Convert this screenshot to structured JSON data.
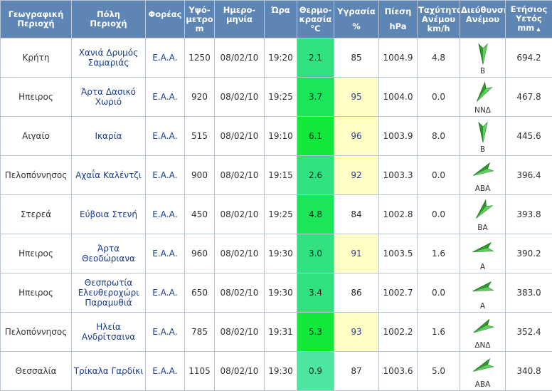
{
  "headers": {
    "region": [
      "Γεωγραφική",
      "Περιοχή"
    ],
    "station": [
      "Πόλη",
      "Περιοχή"
    ],
    "agency": "Φορέας",
    "altitude": [
      "Υψό-",
      "μετρο",
      "m"
    ],
    "date": [
      "Ημερο-",
      "μηνία"
    ],
    "time": "Ώρα",
    "temperature": [
      "Θερμο-",
      "κρασία",
      "°C"
    ],
    "humidity": [
      "Υγρασία",
      "%"
    ],
    "pressure": [
      "Πίεση",
      "hPa"
    ],
    "wind_speed": [
      "Ταχύτητα",
      "Ανέμου",
      "km/h"
    ],
    "wind_direction": [
      "Διεύθυνση",
      "Ανέμου"
    ],
    "rain": [
      "Ετήσιος",
      "Υετός",
      "mm"
    ],
    "sort_icon": "sort-ascending-icon",
    "sort_glyph": "▲"
  },
  "colors": {
    "header_bg": "#5d86b4",
    "humidity_high_bg": "#ffffc6",
    "arrow_fill": "#2e9a2e",
    "temp_scale": [
      "#4ce6a0",
      "#2fe17f",
      "#1be65a",
      "#11e83a"
    ]
  },
  "rows": [
    {
      "region": "Κρήτη",
      "station": "Χανιά Δρυμός Σαμαριάς",
      "agency": "Ε.Α.Α.",
      "altitude": "1250",
      "date": "08/02/10",
      "time": "19:20",
      "temperature": "2.1",
      "humidity": "85",
      "humidity_high": false,
      "pressure": "1004.9",
      "wind_speed": "4.8",
      "wind_dir": "Β",
      "rain": "694.2"
    },
    {
      "region": "Ηπειρος",
      "station": "Άρτα Δασικό Χωριό",
      "agency": "Ε.Α.Α.",
      "altitude": "920",
      "date": "08/02/10",
      "time": "19:25",
      "temperature": "3.7",
      "humidity": "95",
      "humidity_high": true,
      "pressure": "1004.0",
      "wind_speed": "0.0",
      "wind_dir": "ΝΝΔ",
      "rain": "467.8"
    },
    {
      "region": "Αιγαίο",
      "station": "Ικαρία",
      "agency": "Ε.Α.Α.",
      "altitude": "515",
      "date": "08/02/10",
      "time": "19:10",
      "temperature": "6.1",
      "humidity": "96",
      "humidity_high": true,
      "pressure": "1003.9",
      "wind_speed": "8.0",
      "wind_dir": "Β",
      "rain": "445.6"
    },
    {
      "region": "Πελοπόννησος",
      "station": "Αχαΐα Καλέντζι",
      "agency": "Ε.Α.Α.",
      "altitude": "900",
      "date": "08/02/10",
      "time": "19:15",
      "temperature": "2.6",
      "humidity": "92",
      "humidity_high": true,
      "pressure": "1003.3",
      "wind_speed": "0.0",
      "wind_dir": "ΑΒΑ",
      "rain": "396.4"
    },
    {
      "region": "Στερεά",
      "station": "Εύβοια Στενή",
      "agency": "Ε.Α.Α.",
      "altitude": "450",
      "date": "08/02/10",
      "time": "19:25",
      "temperature": "4.8",
      "humidity": "84",
      "humidity_high": false,
      "pressure": "1002.8",
      "wind_speed": "0.0",
      "wind_dir": "ΒΑ",
      "rain": "393.8"
    },
    {
      "region": "Ηπειρος",
      "station": "Άρτα Θεοδώριανα",
      "agency": "Ε.Α.Α.",
      "altitude": "960",
      "date": "08/02/10",
      "time": "19:30",
      "temperature": "3.0",
      "humidity": "91",
      "humidity_high": true,
      "pressure": "1003.5",
      "wind_speed": "1.6",
      "wind_dir": "Α",
      "rain": "390.2"
    },
    {
      "region": "Ηπειρος",
      "station": "Θεσπρωτία Ελευθεροχώρι Παραμυθιά",
      "agency": "Ε.Α.Α.",
      "altitude": "650",
      "date": "08/02/10",
      "time": "19:30",
      "temperature": "3.4",
      "humidity": "86",
      "humidity_high": false,
      "pressure": "1002.7",
      "wind_speed": "0.0",
      "wind_dir": "Α",
      "rain": "383.0"
    },
    {
      "region": "Πελοπόννησος",
      "station": "Ηλεία Ανδρίτσαινα",
      "agency": "Ε.Α.Α.",
      "altitude": "785",
      "date": "08/02/10",
      "time": "19:31",
      "temperature": "5.3",
      "humidity": "93",
      "humidity_high": true,
      "pressure": "1002.2",
      "wind_speed": "1.6",
      "wind_dir": "ΔΝΔ",
      "rain": "352.4"
    },
    {
      "region": "Θεσσαλία",
      "station": "Τρίκαλα Γαρδίκι",
      "agency": "Ε.Α.Α.",
      "altitude": "1105",
      "date": "08/02/10",
      "time": "19:30",
      "temperature": "0.9",
      "humidity": "87",
      "humidity_high": false,
      "pressure": "1003.6",
      "wind_speed": "5.0",
      "wind_dir": "ΑΒΑ",
      "rain": "340.8"
    }
  ]
}
